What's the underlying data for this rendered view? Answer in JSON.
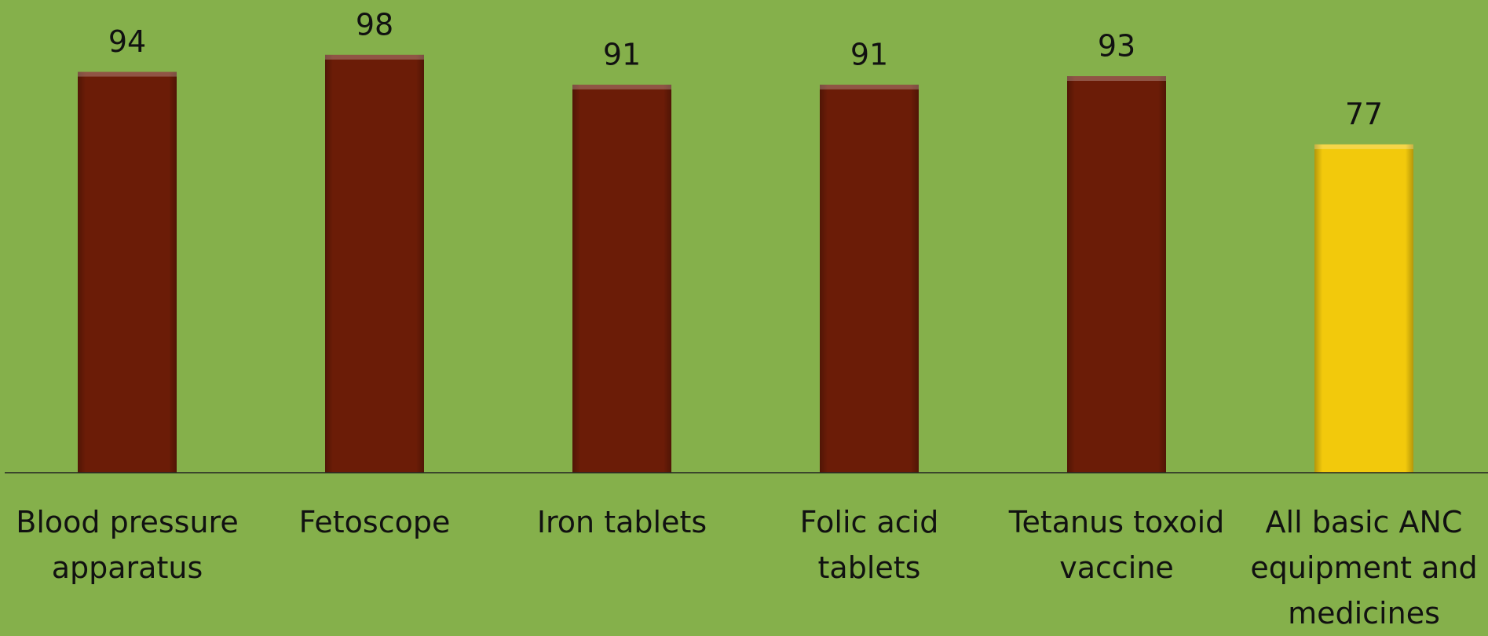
{
  "chart_data": {
    "type": "bar",
    "categories": [
      "Blood pressure apparatus",
      "Fetoscope",
      "Iron tablets",
      "Folic acid tablets",
      "Tetanus toxoid vaccine",
      "All basic ANC equipment and medicines"
    ],
    "values": [
      94,
      98,
      91,
      91,
      93,
      77
    ],
    "colors": [
      "#6b1c07",
      "#6b1c07",
      "#6b1c07",
      "#6b1c07",
      "#6b1c07",
      "#f2c90c"
    ]
  }
}
